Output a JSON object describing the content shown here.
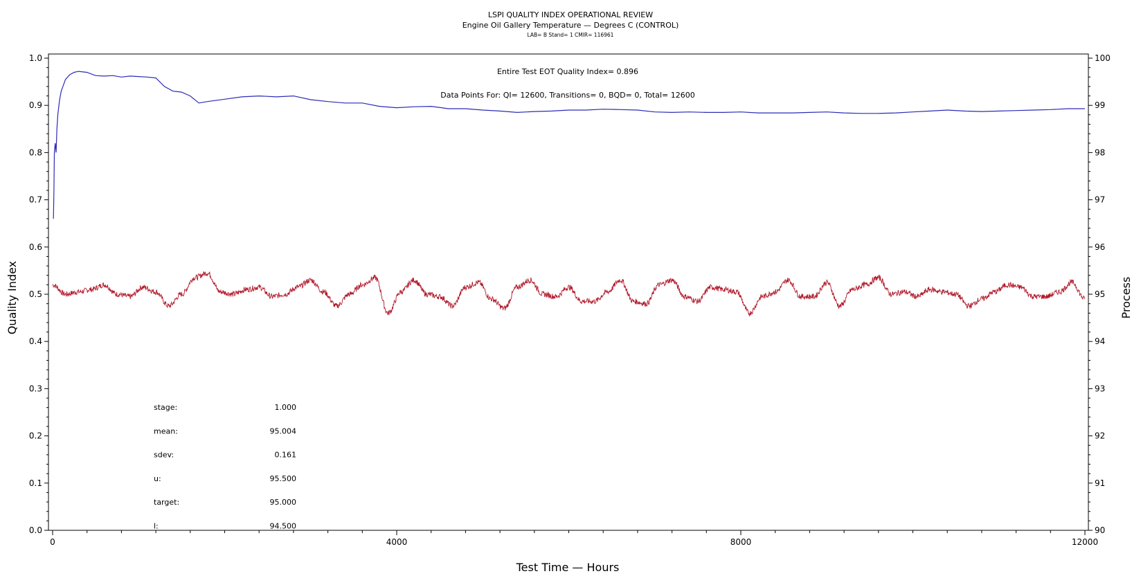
{
  "chart_data": {
    "type": "line",
    "title": "LSPI QUALITY INDEX OPERATIONAL REVIEW",
    "subtitle": "Engine Oil Gallery Temperature — Degrees C (CONTROL)",
    "subtitle2": "LAB= B Stand= 1 CMIR= 116961",
    "xlabel": "Test Time — Hours",
    "ylabel": "Quality Index",
    "y2label": "Process",
    "xlim": [
      0,
      12000
    ],
    "ylim": [
      0,
      1
    ],
    "y2lim": [
      90,
      100
    ],
    "x_ticks": [
      "0",
      "4000",
      "8000",
      "12000"
    ],
    "y_ticks": [
      "0.0",
      "0.1",
      "0.2",
      "0.3",
      "0.4",
      "0.5",
      "0.6",
      "0.7",
      "0.8",
      "0.9",
      "1.0"
    ],
    "y2_ticks": [
      "90",
      "91",
      "92",
      "93",
      "94",
      "95",
      "96",
      "97",
      "98",
      "99",
      "100"
    ],
    "annotations": {
      "quality_index": "Entire Test EOT Quality Index=   0.896",
      "data_points": "Data Points For: QI= 12600, Transitions=     0, BQD=     0, Total= 12600"
    },
    "stats": [
      {
        "label": "stage:",
        "value": "1.000"
      },
      {
        "label": "mean:",
        "value": "95.004"
      },
      {
        "label": "sdev:",
        "value": "0.161"
      },
      {
        "label": "u:",
        "value": "95.500"
      },
      {
        "label": "target:",
        "value": "95.000"
      },
      {
        "label": "l:",
        "value": "94.500"
      }
    ],
    "series": [
      {
        "axis": "left",
        "color": "#2a2ab8",
        "x": [
          10,
          15,
          20,
          30,
          40,
          50,
          60,
          80,
          100,
          150,
          200,
          250,
          300,
          400,
          500,
          600,
          700,
          800,
          900,
          1000,
          1100,
          1200,
          1300,
          1400,
          1500,
          1600,
          1700,
          1800,
          2000,
          2200,
          2400,
          2600,
          2800,
          3000,
          3200,
          3400,
          3600,
          3800,
          4000,
          4200,
          4400,
          4600,
          4800,
          5000,
          5200,
          5400,
          5600,
          5800,
          6000,
          6200,
          6400,
          6600,
          6800,
          7000,
          7200,
          7400,
          7600,
          7800,
          8000,
          8200,
          8400,
          8600,
          8800,
          9000,
          9200,
          9400,
          9600,
          9800,
          10000,
          10200,
          10400,
          10600,
          10800,
          11000,
          11200,
          11400,
          11600,
          11800,
          12000
        ],
        "y": [
          0.66,
          0.72,
          0.8,
          0.82,
          0.8,
          0.85,
          0.88,
          0.91,
          0.93,
          0.955,
          0.965,
          0.97,
          0.972,
          0.97,
          0.963,
          0.962,
          0.963,
          0.96,
          0.962,
          0.961,
          0.96,
          0.958,
          0.94,
          0.93,
          0.928,
          0.92,
          0.905,
          0.908,
          0.913,
          0.918,
          0.92,
          0.918,
          0.92,
          0.912,
          0.908,
          0.905,
          0.905,
          0.898,
          0.895,
          0.897,
          0.898,
          0.893,
          0.893,
          0.89,
          0.888,
          0.885,
          0.887,
          0.888,
          0.89,
          0.89,
          0.892,
          0.891,
          0.89,
          0.886,
          0.885,
          0.886,
          0.885,
          0.885,
          0.886,
          0.884,
          0.884,
          0.884,
          0.885,
          0.886,
          0.884,
          0.883,
          0.883,
          0.884,
          0.886,
          0.888,
          0.89,
          0.888,
          0.887,
          0.888,
          0.889,
          0.89,
          0.891,
          0.893,
          0.893
        ]
      },
      {
        "axis": "right",
        "color": "#b0182a",
        "x": [
          0,
          150,
          300,
          450,
          600,
          750,
          900,
          1050,
          1200,
          1350,
          1500,
          1650,
          1800,
          1950,
          2100,
          2250,
          2400,
          2550,
          2700,
          2850,
          3000,
          3150,
          3300,
          3450,
          3600,
          3750,
          3900,
          4050,
          4200,
          4350,
          4500,
          4650,
          4800,
          4950,
          5100,
          5250,
          5400,
          5550,
          5700,
          5850,
          6000,
          6150,
          6300,
          6450,
          6600,
          6750,
          6900,
          7050,
          7200,
          7350,
          7500,
          7650,
          7800,
          7950,
          8100,
          8250,
          8400,
          8550,
          8700,
          8850,
          9000,
          9150,
          9300,
          9450,
          9600,
          9750,
          9900,
          10050,
          10200,
          10350,
          10500,
          10650,
          10800,
          10950,
          11100,
          11250,
          11400,
          11550,
          11700,
          11850,
          12000
        ],
        "y": [
          95.2,
          95.0,
          95.05,
          95.1,
          95.2,
          95.0,
          94.95,
          95.15,
          95.05,
          94.75,
          95.0,
          95.35,
          95.45,
          95.05,
          95.0,
          95.1,
          95.15,
          94.95,
          95.0,
          95.15,
          95.3,
          95.05,
          94.75,
          95.0,
          95.2,
          95.35,
          94.6,
          95.05,
          95.3,
          95.0,
          94.95,
          94.75,
          95.15,
          95.25,
          94.9,
          94.7,
          95.15,
          95.3,
          95.0,
          94.95,
          95.15,
          94.85,
          94.85,
          95.05,
          95.3,
          94.85,
          94.8,
          95.2,
          95.3,
          94.95,
          94.85,
          95.15,
          95.1,
          95.05,
          94.6,
          94.95,
          95.05,
          95.3,
          94.95,
          94.95,
          95.25,
          94.75,
          95.1,
          95.2,
          95.35,
          95.0,
          95.05,
          94.95,
          95.1,
          95.05,
          95.0,
          94.75,
          94.9,
          95.05,
          95.2,
          95.15,
          94.95,
          94.95,
          95.05,
          95.25,
          94.9
        ]
      }
    ]
  }
}
